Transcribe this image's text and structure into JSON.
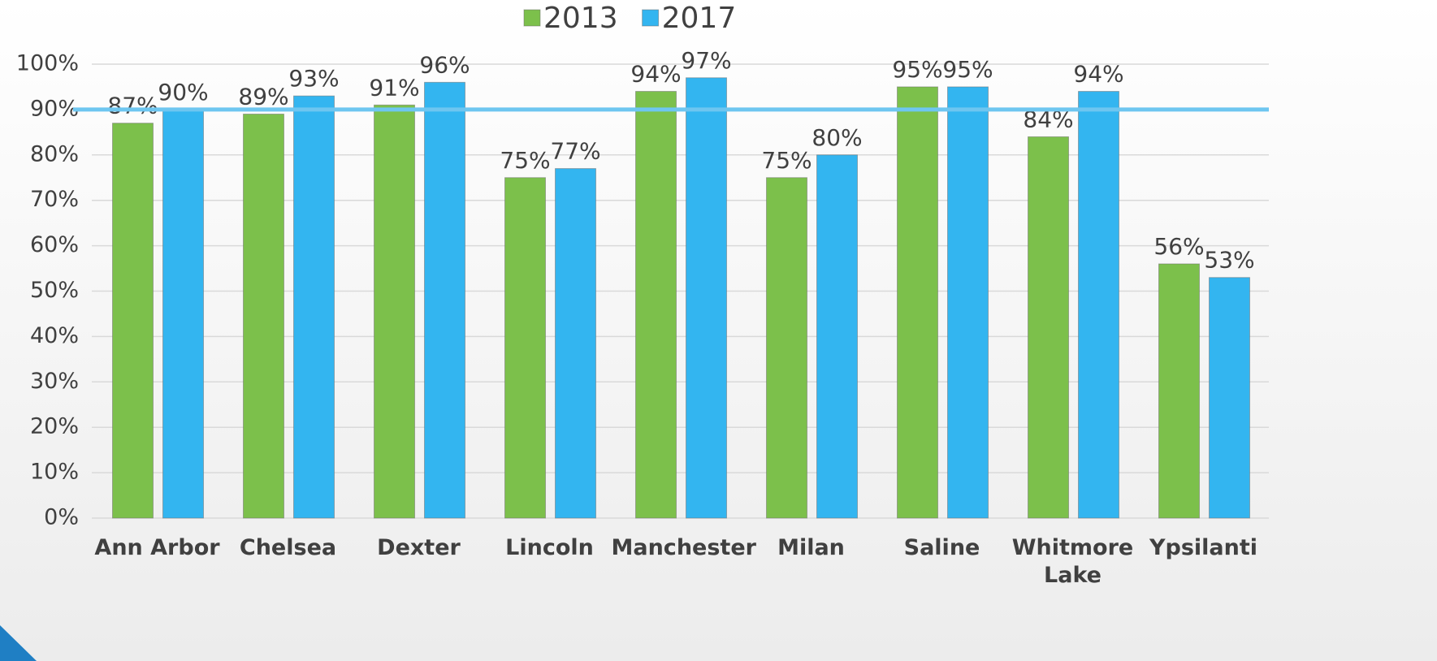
{
  "chart_data": {
    "type": "bar",
    "categories": [
      "Ann Arbor",
      "Chelsea",
      "Dexter",
      "Lincoln",
      "Manchester",
      "Milan",
      "Saline",
      "Whitmore Lake",
      "Ypsilanti"
    ],
    "series": [
      {
        "name": "2013",
        "color": "#7cc04b",
        "values": [
          87,
          89,
          91,
          75,
          94,
          75,
          95,
          84,
          56
        ],
        "value_labels": [
          "87%",
          "89%",
          "91%",
          "75%",
          "94%",
          "75%",
          "95%",
          "84%",
          "56%"
        ]
      },
      {
        "name": "2017",
        "color": "#33b5f0",
        "values": [
          90,
          93,
          96,
          77,
          97,
          80,
          95,
          94,
          53
        ],
        "value_labels": [
          "90%",
          "93%",
          "96%",
          "77%",
          "97%",
          "80%",
          "95%",
          "94%",
          "53%"
        ]
      }
    ],
    "ylim": [
      0,
      100
    ],
    "yticks": [
      {
        "value": 0,
        "label": "0%"
      },
      {
        "value": 10,
        "label": "10%"
      },
      {
        "value": 20,
        "label": "20%"
      },
      {
        "value": 30,
        "label": "30%"
      },
      {
        "value": 40,
        "label": "40%"
      },
      {
        "value": 50,
        "label": "50%"
      },
      {
        "value": 60,
        "label": "60%"
      },
      {
        "value": 70,
        "label": "70%"
      },
      {
        "value": 80,
        "label": "80%"
      },
      {
        "value": 90,
        "label": "90%"
      },
      {
        "value": 100,
        "label": "100%"
      }
    ],
    "grid": true,
    "reference_line": 90,
    "reference_color": "#6ec6f0",
    "legend": "top"
  }
}
